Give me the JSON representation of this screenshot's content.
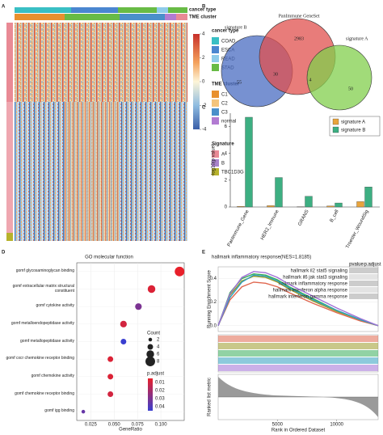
{
  "chart_data": [
    {
      "type": "heatmap",
      "panel": "A",
      "annotations": [
        {
          "title": "cancer type",
          "labels": [
            "COAD",
            "ESCA",
            "READ",
            "STAD"
          ],
          "colors": [
            "#39bfc4",
            "#4a86d0",
            "#8ecbea",
            "#68bb45"
          ]
        },
        {
          "title": "TME cluster",
          "labels": [
            "C1",
            "C2",
            "C3",
            "normal"
          ],
          "colors": [
            "#e8902e",
            "#f3c47c",
            "#4a8fca",
            "#b27bd2"
          ]
        },
        {
          "title": "Signature",
          "labels": [
            "A",
            "B",
            "TBC1D3G"
          ],
          "colors": [
            "#e98a95",
            "#a883c9",
            "#b7b22c"
          ]
        }
      ],
      "zlim": [
        -4,
        4
      ],
      "zticks": [
        4,
        2,
        0,
        -2,
        -4
      ]
    },
    {
      "type": "venn",
      "panel": "B",
      "sets": [
        {
          "name": "signature B",
          "color": "#4a6cc2"
        },
        {
          "name": "PanImmune GeneSet",
          "color": "#e0504e"
        },
        {
          "name": "signature A",
          "color": "#82cf4c"
        }
      ],
      "values": [
        55,
        30,
        2983,
        4,
        50
      ]
    },
    {
      "type": "bar",
      "panel": "C",
      "ylabel": "-log10(p value)",
      "categories": [
        "PanImmune_Gene",
        "HER2_Immune",
        "GRANS",
        "B_cell",
        "Troester_WoundSig"
      ],
      "series": [
        {
          "name": "signature A",
          "color": "#e9a43c",
          "values": [
            0.05,
            0.1,
            0.02,
            0.08,
            0.4
          ]
        },
        {
          "name": "signature B",
          "color": "#3daf82",
          "values": [
            6.7,
            2.2,
            0.8,
            0.3,
            1.5
          ]
        }
      ],
      "ylim": [
        0,
        7
      ],
      "yticks": [
        0,
        2,
        4,
        6
      ]
    },
    {
      "type": "dot",
      "panel": "D",
      "title": "GO molecular function",
      "xlabel": "GeneRatio",
      "categories": [
        "gomf glycosaminoglycan binding",
        "gomf extracellular matrix structural constituent",
        "gomf cytokine activity",
        "gomf metalloendopeptidase activity",
        "gomf metallopeptidase activity",
        "gomf cxcr chemokine receptor binding",
        "gomf chemokine activity",
        "gomf chemokine receptor binding",
        "gomf igg binding"
      ],
      "values": [
        0.12,
        0.09,
        0.076,
        0.06,
        0.06,
        0.046,
        0.046,
        0.046,
        0.017
      ],
      "sizes": [
        8,
        6,
        5,
        5,
        4,
        4,
        4,
        4,
        2
      ],
      "size_label": "Count",
      "size_ticks": [
        2,
        4,
        6,
        8
      ],
      "color_label": "p.adjust",
      "color_values": [
        0.005,
        0.008,
        0.03,
        0.01,
        0.045,
        0.008,
        0.008,
        0.01,
        0.035
      ],
      "clim": [
        0.005,
        0.045
      ],
      "cticks": [
        0.01,
        0.02,
        0.03,
        0.04
      ],
      "colors": [
        "#e8202a",
        "#3a3fd0"
      ],
      "xlim": [
        0.01,
        0.125
      ],
      "xticks": [
        {
          "value": 0.025,
          "label": "0.025"
        },
        {
          "value": 0.05,
          "label": "0.050"
        },
        {
          "value": 0.075,
          "label": "0.075"
        },
        {
          "value": 0.1,
          "label": "0.100"
        }
      ]
    },
    {
      "type": "gsea",
      "panel": "E",
      "title": "hallmark inflammatory response(NES=1.8185)",
      "table_header": [
        "pvalue",
        "p.adjust"
      ],
      "ylabel": "Running Enrichment Score",
      "ylabel2": "Ranked list metric",
      "xlabel": "Rank in Ordered Dataset",
      "x": [
        0,
        1000,
        2000,
        3000,
        4000,
        5000,
        6000,
        8000,
        10000,
        12000,
        13500
      ],
      "series": [
        {
          "name": "hallmark il2 stat5 signaling",
          "color": "#e0674f",
          "values": [
            0,
            0.22,
            0.33,
            0.37,
            0.36,
            0.33,
            0.28,
            0.19,
            0.11,
            0.04,
            0
          ]
        },
        {
          "name": "hallmark il6 jak stat3 signaling",
          "color": "#9c9a28",
          "values": [
            0,
            0.26,
            0.38,
            0.42,
            0.41,
            0.37,
            0.31,
            0.21,
            0.12,
            0.05,
            0
          ]
        },
        {
          "name": "hallmark inflammatory response",
          "color": "#37ad5a",
          "values": [
            0,
            0.28,
            0.4,
            0.44,
            0.43,
            0.39,
            0.33,
            0.23,
            0.13,
            0.05,
            0
          ]
        },
        {
          "name": "hallmark interferon alpha response",
          "color": "#2f9fc0",
          "values": [
            0,
            0.24,
            0.37,
            0.43,
            0.42,
            0.38,
            0.32,
            0.22,
            0.13,
            0.05,
            0
          ]
        },
        {
          "name": "hallmark interferon gamma response",
          "color": "#a070d6",
          "values": [
            0,
            0.27,
            0.41,
            0.46,
            0.45,
            0.41,
            0.35,
            0.25,
            0.15,
            0.06,
            0
          ]
        }
      ],
      "xlim": [
        0,
        13500
      ],
      "xticks": [
        5000,
        10000
      ],
      "ylim": [
        -0.05,
        0.5
      ],
      "yticks": [
        {
          "value": 0,
          "label": "0.0"
        },
        {
          "value": 0.2,
          "label": "0.2"
        },
        {
          "value": 0.4,
          "label": "0.4"
        }
      ]
    }
  ]
}
